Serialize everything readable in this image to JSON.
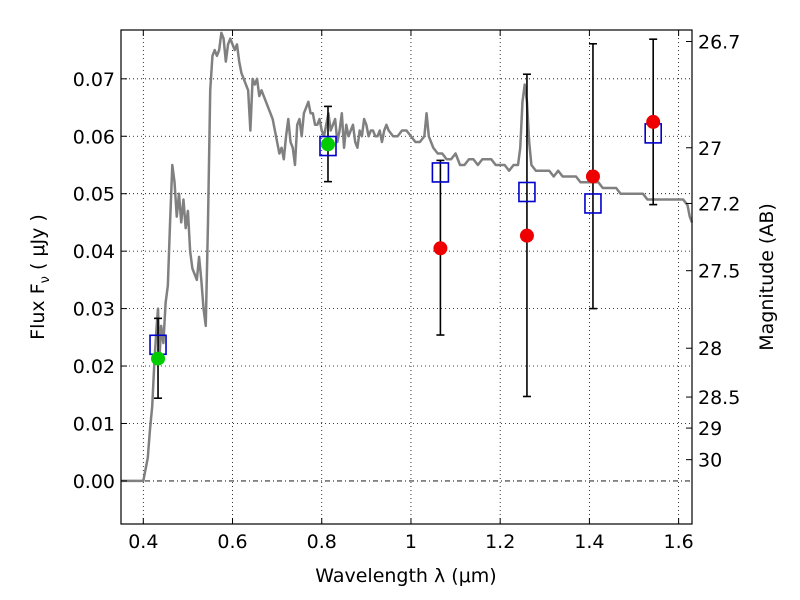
{
  "chart_data": {
    "type": "scatter",
    "xlabel": "Wavelength  λ (μm)",
    "ylabel": "Flux  F",
    "ylabel_sub": "ν",
    "ylabel_rest": "  ( μJy )",
    "ylabel_right": "Magnitude (AB)",
    "xlim": [
      0.35,
      1.63
    ],
    "ylim": [
      -0.0075,
      0.0785
    ],
    "grid": true,
    "x_ticks": [
      0.4,
      0.6,
      0.8,
      1.0,
      1.2,
      1.4,
      1.6
    ],
    "x_tick_labels": [
      "0.4",
      "0.6",
      "0.8",
      "1",
      "1.2",
      "1.4",
      "1.6"
    ],
    "y_ticks": [
      0.0,
      0.01,
      0.02,
      0.03,
      0.04,
      0.05,
      0.06,
      0.07
    ],
    "y_tick_labels": [
      "0.00",
      "0.01",
      "0.02",
      "0.03",
      "0.04",
      "0.05",
      "0.06",
      "0.07"
    ],
    "right_axis_ticks": [
      {
        "label": "26.7",
        "flux": 0.0765
      },
      {
        "label": "27",
        "flux": 0.058
      },
      {
        "label": "27.2",
        "flux": 0.0483
      },
      {
        "label": "27.5",
        "flux": 0.0366
      },
      {
        "label": "28",
        "flux": 0.0231
      },
      {
        "label": "28.5",
        "flux": 0.0146
      },
      {
        "label": "29",
        "flux": 0.0092
      },
      {
        "label": "30",
        "flux": 0.0037
      }
    ],
    "series": [
      {
        "kind": "sed",
        "color": "#808080",
        "points": [
          [
            0.35,
            0.0
          ],
          [
            0.39,
            0.0
          ],
          [
            0.4,
            0.0
          ],
          [
            0.41,
            0.004
          ],
          [
            0.415,
            0.009
          ],
          [
            0.42,
            0.013
          ],
          [
            0.425,
            0.021
          ],
          [
            0.43,
            0.027
          ],
          [
            0.433,
            0.03
          ],
          [
            0.436,
            0.021
          ],
          [
            0.44,
            0.027
          ],
          [
            0.445,
            0.024
          ],
          [
            0.45,
            0.031
          ],
          [
            0.455,
            0.034
          ],
          [
            0.46,
            0.045
          ],
          [
            0.465,
            0.055
          ],
          [
            0.47,
            0.052
          ],
          [
            0.475,
            0.046
          ],
          [
            0.48,
            0.05
          ],
          [
            0.485,
            0.045
          ],
          [
            0.49,
            0.049
          ],
          [
            0.495,
            0.044
          ],
          [
            0.5,
            0.047
          ],
          [
            0.505,
            0.04
          ],
          [
            0.51,
            0.037
          ],
          [
            0.515,
            0.036
          ],
          [
            0.52,
            0.035
          ],
          [
            0.525,
            0.039
          ],
          [
            0.53,
            0.035
          ],
          [
            0.535,
            0.03
          ],
          [
            0.54,
            0.027
          ],
          [
            0.545,
            0.045
          ],
          [
            0.55,
            0.068
          ],
          [
            0.555,
            0.074
          ],
          [
            0.56,
            0.075
          ],
          [
            0.565,
            0.074
          ],
          [
            0.57,
            0.075
          ],
          [
            0.575,
            0.078
          ],
          [
            0.58,
            0.077
          ],
          [
            0.585,
            0.073
          ],
          [
            0.59,
            0.076
          ],
          [
            0.595,
            0.077
          ],
          [
            0.6,
            0.076
          ],
          [
            0.605,
            0.075
          ],
          [
            0.61,
            0.076
          ],
          [
            0.615,
            0.073
          ],
          [
            0.62,
            0.071
          ],
          [
            0.625,
            0.07
          ],
          [
            0.63,
            0.069
          ],
          [
            0.635,
            0.068
          ],
          [
            0.64,
            0.061
          ],
          [
            0.645,
            0.07
          ],
          [
            0.65,
            0.069
          ],
          [
            0.655,
            0.07
          ],
          [
            0.66,
            0.067
          ],
          [
            0.665,
            0.068
          ],
          [
            0.67,
            0.067
          ],
          [
            0.675,
            0.066
          ],
          [
            0.68,
            0.065
          ],
          [
            0.685,
            0.064
          ],
          [
            0.69,
            0.063
          ],
          [
            0.695,
            0.061
          ],
          [
            0.7,
            0.059
          ],
          [
            0.705,
            0.057
          ],
          [
            0.71,
            0.058
          ],
          [
            0.715,
            0.056
          ],
          [
            0.72,
            0.06
          ],
          [
            0.725,
            0.063
          ],
          [
            0.73,
            0.059
          ],
          [
            0.735,
            0.058
          ],
          [
            0.74,
            0.055
          ],
          [
            0.745,
            0.062
          ],
          [
            0.75,
            0.063
          ],
          [
            0.755,
            0.06
          ],
          [
            0.76,
            0.064
          ],
          [
            0.765,
            0.065
          ],
          [
            0.77,
            0.066
          ],
          [
            0.775,
            0.064
          ],
          [
            0.78,
            0.064
          ],
          [
            0.785,
            0.062
          ],
          [
            0.79,
            0.062
          ],
          [
            0.795,
            0.063
          ],
          [
            0.8,
            0.061
          ],
          [
            0.805,
            0.06
          ],
          [
            0.81,
            0.062
          ],
          [
            0.815,
            0.064
          ],
          [
            0.82,
            0.061
          ],
          [
            0.825,
            0.062
          ],
          [
            0.83,
            0.063
          ],
          [
            0.835,
            0.059
          ],
          [
            0.84,
            0.061
          ],
          [
            0.845,
            0.064
          ],
          [
            0.85,
            0.058
          ],
          [
            0.855,
            0.062
          ],
          [
            0.86,
            0.06
          ],
          [
            0.865,
            0.061
          ],
          [
            0.87,
            0.062
          ],
          [
            0.875,
            0.059
          ],
          [
            0.88,
            0.058
          ],
          [
            0.885,
            0.061
          ],
          [
            0.89,
            0.06
          ],
          [
            0.895,
            0.063
          ],
          [
            0.9,
            0.062
          ],
          [
            0.905,
            0.06
          ],
          [
            0.91,
            0.061
          ],
          [
            0.915,
            0.061
          ],
          [
            0.92,
            0.06
          ],
          [
            0.925,
            0.06
          ],
          [
            0.93,
            0.061
          ],
          [
            0.935,
            0.059
          ],
          [
            0.94,
            0.061
          ],
          [
            0.945,
            0.062
          ],
          [
            0.95,
            0.061
          ],
          [
            0.96,
            0.06
          ],
          [
            0.97,
            0.06
          ],
          [
            0.98,
            0.061
          ],
          [
            0.99,
            0.061
          ],
          [
            1.0,
            0.06
          ],
          [
            1.01,
            0.059
          ],
          [
            1.02,
            0.059
          ],
          [
            1.03,
            0.06
          ],
          [
            1.035,
            0.064
          ],
          [
            1.04,
            0.06
          ],
          [
            1.05,
            0.058
          ],
          [
            1.06,
            0.057
          ],
          [
            1.07,
            0.057
          ],
          [
            1.08,
            0.056
          ],
          [
            1.09,
            0.056
          ],
          [
            1.1,
            0.057
          ],
          [
            1.11,
            0.055
          ],
          [
            1.12,
            0.055
          ],
          [
            1.13,
            0.056
          ],
          [
            1.14,
            0.056
          ],
          [
            1.15,
            0.055
          ],
          [
            1.16,
            0.056
          ],
          [
            1.17,
            0.056
          ],
          [
            1.18,
            0.056
          ],
          [
            1.19,
            0.055
          ],
          [
            1.2,
            0.055
          ],
          [
            1.21,
            0.055
          ],
          [
            1.22,
            0.054
          ],
          [
            1.23,
            0.055
          ],
          [
            1.24,
            0.055
          ],
          [
            1.245,
            0.058
          ],
          [
            1.25,
            0.066
          ],
          [
            1.255,
            0.069
          ],
          [
            1.26,
            0.066
          ],
          [
            1.265,
            0.059
          ],
          [
            1.27,
            0.055
          ],
          [
            1.28,
            0.054
          ],
          [
            1.29,
            0.054
          ],
          [
            1.3,
            0.054
          ],
          [
            1.31,
            0.054
          ],
          [
            1.32,
            0.053
          ],
          [
            1.33,
            0.054
          ],
          [
            1.34,
            0.053
          ],
          [
            1.35,
            0.053
          ],
          [
            1.36,
            0.053
          ],
          [
            1.37,
            0.053
          ],
          [
            1.38,
            0.052
          ],
          [
            1.39,
            0.052
          ],
          [
            1.4,
            0.052
          ],
          [
            1.41,
            0.052
          ],
          [
            1.42,
            0.052
          ],
          [
            1.43,
            0.051
          ],
          [
            1.44,
            0.051
          ],
          [
            1.45,
            0.051
          ],
          [
            1.46,
            0.051
          ],
          [
            1.47,
            0.05
          ],
          [
            1.48,
            0.05
          ],
          [
            1.49,
            0.05
          ],
          [
            1.5,
            0.05
          ],
          [
            1.51,
            0.05
          ],
          [
            1.52,
            0.05
          ],
          [
            1.53,
            0.049
          ],
          [
            1.54,
            0.049
          ],
          [
            1.55,
            0.049
          ],
          [
            1.56,
            0.049
          ],
          [
            1.57,
            0.049
          ],
          [
            1.58,
            0.049
          ],
          [
            1.59,
            0.049
          ],
          [
            1.6,
            0.049
          ],
          [
            1.61,
            0.049
          ],
          [
            1.62,
            0.048
          ],
          [
            1.625,
            0.046
          ],
          [
            1.63,
            0.045
          ]
        ]
      },
      {
        "kind": "model_boxes",
        "color": "#0000cc",
        "points": [
          [
            0.433,
            0.0237
          ],
          [
            0.814,
            0.0583
          ],
          [
            1.066,
            0.0537
          ],
          [
            1.26,
            0.0503
          ],
          [
            1.408,
            0.0483
          ],
          [
            1.543,
            0.0605
          ]
        ]
      },
      {
        "kind": "error_bars",
        "color": "#000000",
        "points": [
          {
            "x": 0.433,
            "low": 0.0144,
            "high": 0.0283
          },
          {
            "x": 0.814,
            "low": 0.0521,
            "high": 0.0652
          },
          {
            "x": 1.066,
            "low": 0.0254,
            "high": 0.0558
          },
          {
            "x": 1.26,
            "low": 0.0147,
            "high": 0.0708
          },
          {
            "x": 1.408,
            "low": 0.03,
            "high": 0.0761
          },
          {
            "x": 1.543,
            "low": 0.0481,
            "high": 0.0769
          }
        ]
      },
      {
        "kind": "detections",
        "color": "#00cc00",
        "points": [
          [
            0.433,
            0.0213
          ],
          [
            0.814,
            0.0586
          ]
        ]
      },
      {
        "kind": "upper_limits",
        "color": "#ee0000",
        "points": [
          [
            1.066,
            0.0405
          ],
          [
            1.26,
            0.0427
          ],
          [
            1.408,
            0.053
          ],
          [
            1.543,
            0.0625
          ]
        ]
      }
    ]
  }
}
